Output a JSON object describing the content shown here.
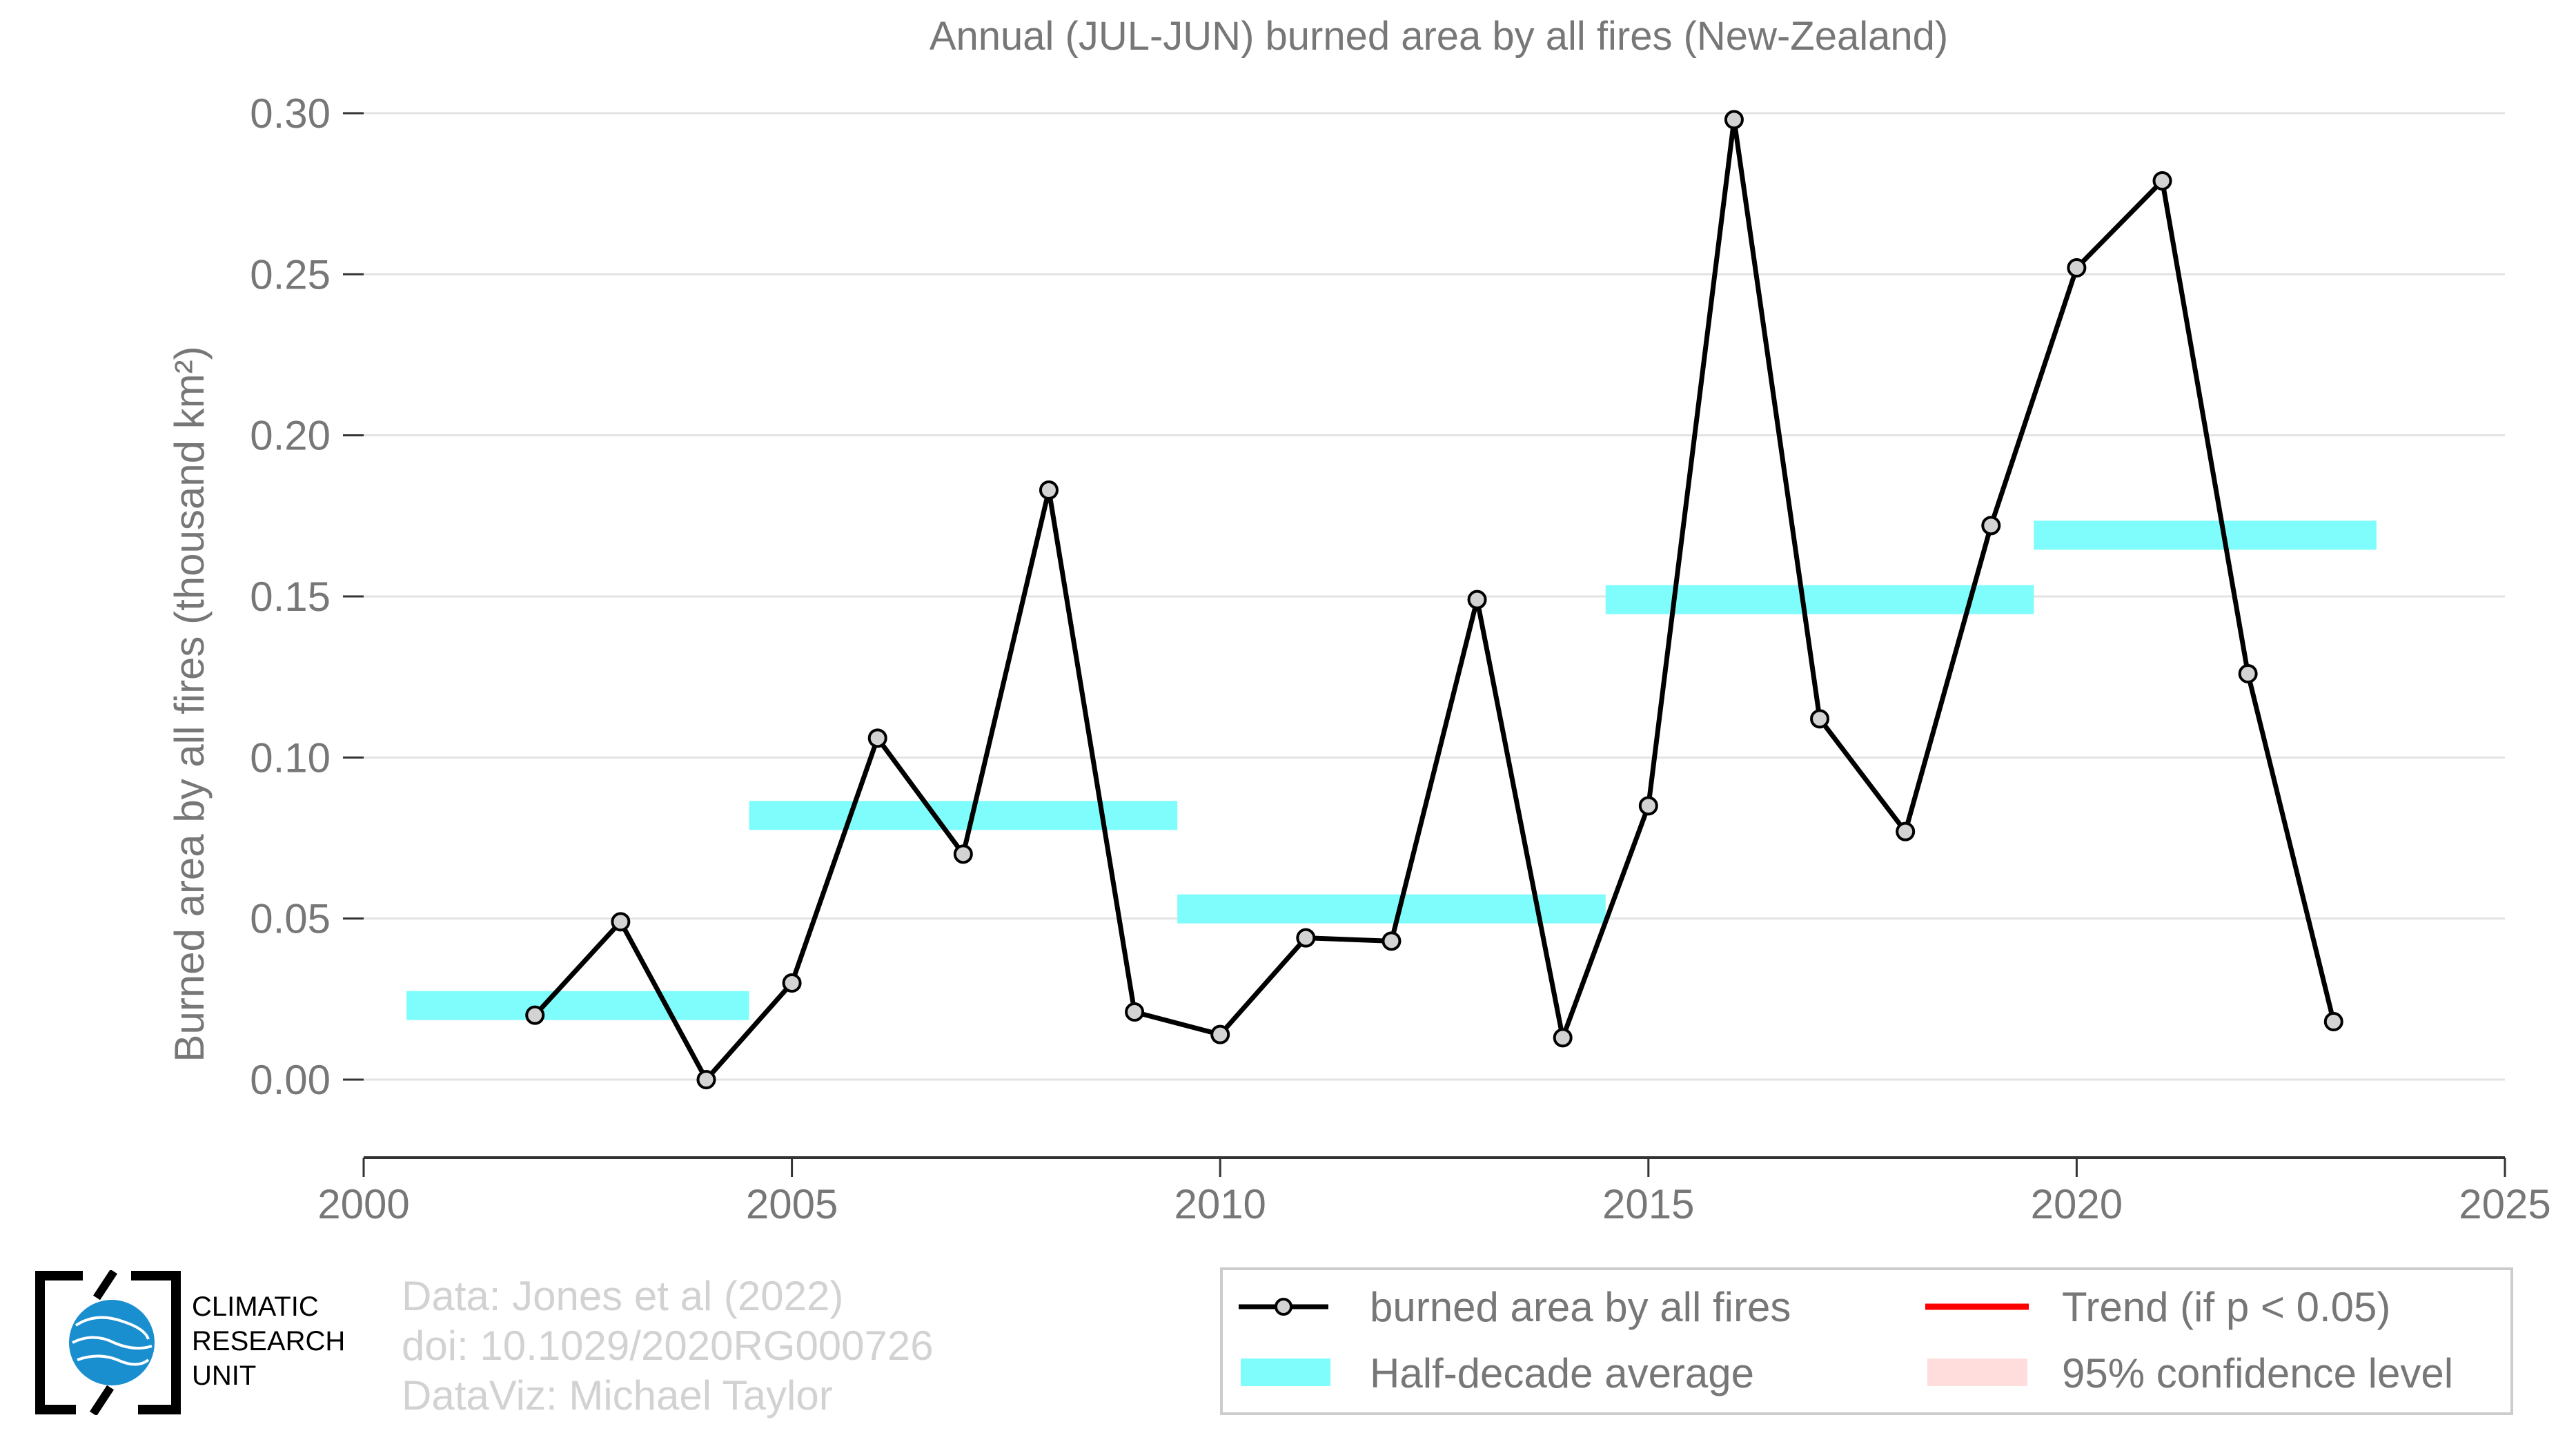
{
  "chart_data": {
    "type": "line",
    "title": "Annual (JUL-JUN) burned area by all fires (New-Zealand)",
    "ylabel": "Burned area by all fires (thousand km²)",
    "xlabel": "",
    "xlim": [
      2000,
      2025
    ],
    "ylim": [
      -0.024,
      0.3
    ],
    "x_ticks": [
      2000,
      2005,
      2010,
      2015,
      2020,
      2025
    ],
    "y_ticks": [
      0.0,
      0.05,
      0.1,
      0.15,
      0.2,
      0.25,
      0.3
    ],
    "y_tick_labels": [
      "0.00",
      "0.05",
      "0.10",
      "0.15",
      "0.20",
      "0.25",
      "0.30"
    ],
    "grid": "horizontal",
    "series": [
      {
        "name": "burned area by all fires",
        "color": "#000000",
        "marker_fill": "#d3d3d3",
        "x": [
          2002,
          2003,
          2004,
          2005,
          2006,
          2007,
          2008,
          2009,
          2010,
          2011,
          2012,
          2013,
          2014,
          2015,
          2016,
          2017,
          2018,
          2019,
          2020,
          2021,
          2022,
          2023
        ],
        "y": [
          0.02,
          0.049,
          0.0,
          0.03,
          0.106,
          0.07,
          0.183,
          0.021,
          0.014,
          0.044,
          0.043,
          0.149,
          0.013,
          0.085,
          0.298,
          0.112,
          0.077,
          0.172,
          0.252,
          0.279,
          0.126,
          0.018
        ]
      }
    ],
    "half_decade_average": {
      "name": "Half-decade average",
      "color": "#7ffcfc",
      "segments": [
        {
          "x_start": 2000.5,
          "x_end": 2004.5,
          "value": 0.023
        },
        {
          "x_start": 2004.5,
          "x_end": 2009.5,
          "value": 0.082
        },
        {
          "x_start": 2009.5,
          "x_end": 2014.5,
          "value": 0.053
        },
        {
          "x_start": 2014.5,
          "x_end": 2019.5,
          "value": 0.149
        },
        {
          "x_start": 2019.5,
          "x_end": 2023.5,
          "value": 0.169
        }
      ]
    },
    "legend": {
      "placement": "bottom-right",
      "entries": [
        {
          "label": "burned area by all fires",
          "kind": "line-marker",
          "color": "#000000"
        },
        {
          "label": "Trend (if p < 0.05)",
          "kind": "line",
          "color": "#ff0000"
        },
        {
          "label": "Half-decade average",
          "kind": "band",
          "color": "#7ffcfc"
        },
        {
          "label": "95% confidence level",
          "kind": "band",
          "color": "#ffdddd"
        }
      ]
    }
  },
  "credits": {
    "data": "Data: Jones et al (2022)",
    "doi": "doi: 10.1029/2020RG000726",
    "dataviz": "DataViz: Michael Taylor"
  },
  "logo": {
    "line1": "CLIMATIC",
    "line2": "RESEARCH",
    "line3": "UNIT"
  }
}
